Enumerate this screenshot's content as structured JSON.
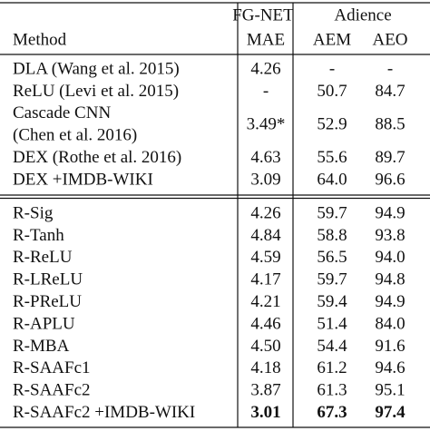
{
  "table": {
    "header": {
      "groups": [
        "FG-NET",
        "Adience"
      ],
      "columns": [
        "Method",
        "MAE",
        "AEM",
        "AEO"
      ]
    },
    "group1": [
      [
        [
          "DLA (Wang et al. 2015)"
        ],
        "4.26",
        "-",
        "-"
      ],
      [
        [
          "ReLU (Levi et al. 2015)"
        ],
        "-",
        "50.7",
        "84.7"
      ],
      [
        [
          "Cascade CNN",
          "(Chen et al. 2016)"
        ],
        "3.49*",
        "52.9",
        "88.5"
      ],
      [
        [
          "DEX (Rothe et al. 2016)"
        ],
        "4.63",
        "55.6",
        "89.7"
      ],
      [
        [
          "DEX +IMDB-WIKI"
        ],
        "3.09",
        "64.0",
        "96.6"
      ]
    ],
    "group2": [
      [
        [
          "R-Sig"
        ],
        "4.26",
        "59.7",
        "94.9"
      ],
      [
        [
          "R-Tanh"
        ],
        "4.84",
        "58.8",
        "93.8"
      ],
      [
        [
          "R-ReLU"
        ],
        "4.59",
        "56.5",
        "94.0"
      ],
      [
        [
          "R-LReLU"
        ],
        "4.17",
        "59.7",
        "94.8"
      ],
      [
        [
          "R-PReLU"
        ],
        "4.21",
        "59.4",
        "94.9"
      ],
      [
        [
          "R-APLU"
        ],
        "4.46",
        "51.4",
        "84.0"
      ],
      [
        [
          "R-MBA"
        ],
        "4.50",
        "54.4",
        "91.6"
      ],
      [
        [
          "R-SAAFc1"
        ],
        "4.18",
        "61.2",
        "94.6"
      ],
      [
        [
          "R-SAAFc2"
        ],
        "3.87",
        "61.3",
        "95.1"
      ],
      [
        [
          "R-SAAFc2 +IMDB-WIKI"
        ],
        "3.01",
        "67.3",
        "97.4"
      ]
    ]
  }
}
